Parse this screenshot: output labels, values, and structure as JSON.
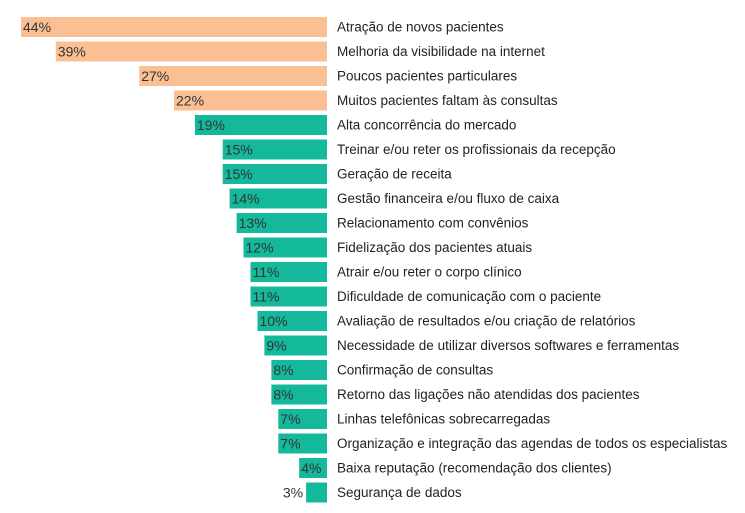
{
  "chart_data": {
    "type": "bar",
    "orientation": "horizontal",
    "categories": [
      "Atração de novos pacientes",
      "Melhoria da visibilidade na internet",
      "Poucos pacientes particulares",
      "Muitos pacientes faltam às consultas",
      "Alta concorrência do mercado",
      "Treinar e/ou reter os profissionais da recepção",
      "Geração de receita",
      "Gestão financeira e/ou fluxo de caixa",
      "Relacionamento com convênios",
      "Fidelização dos pacientes atuais",
      "Atrair e/ou reter o corpo clínico",
      "Dificuldade de comunicação com o paciente",
      "Avaliação de resultados e/ou criação de relatórios",
      "Necessidade de utilizar diversos softwares e ferramentas",
      "Confirmação de consultas",
      "Retorno das ligações não atendidas dos pacientes",
      "Linhas telefônicas sobrecarregadas",
      "Organização e integração das agendas de todos os especialistas",
      "Baixa reputação (recomendação dos clientes)",
      "Segurança de dados"
    ],
    "values": [
      44,
      39,
      27,
      22,
      19,
      15,
      15,
      14,
      13,
      12,
      11,
      11,
      10,
      9,
      8,
      8,
      7,
      7,
      4,
      3
    ],
    "value_labels": [
      "44%",
      "39%",
      "27%",
      "22%",
      "19%",
      "15%",
      "15%",
      "14%",
      "13%",
      "12%",
      "11%",
      "11%",
      "10%",
      "9%",
      "8%",
      "8%",
      "7%",
      "7%",
      "4%",
      "3%"
    ],
    "unit": "%",
    "bar_direction": "extends left from a shared baseline, category labels to the right",
    "highlight_count": 4,
    "colors": {
      "highlight": "#fbbf94",
      "default": "#14b89a",
      "label": "#222222",
      "value_label": "#333333"
    },
    "xlim": [
      0,
      44
    ],
    "grid": false,
    "legend": "none"
  }
}
